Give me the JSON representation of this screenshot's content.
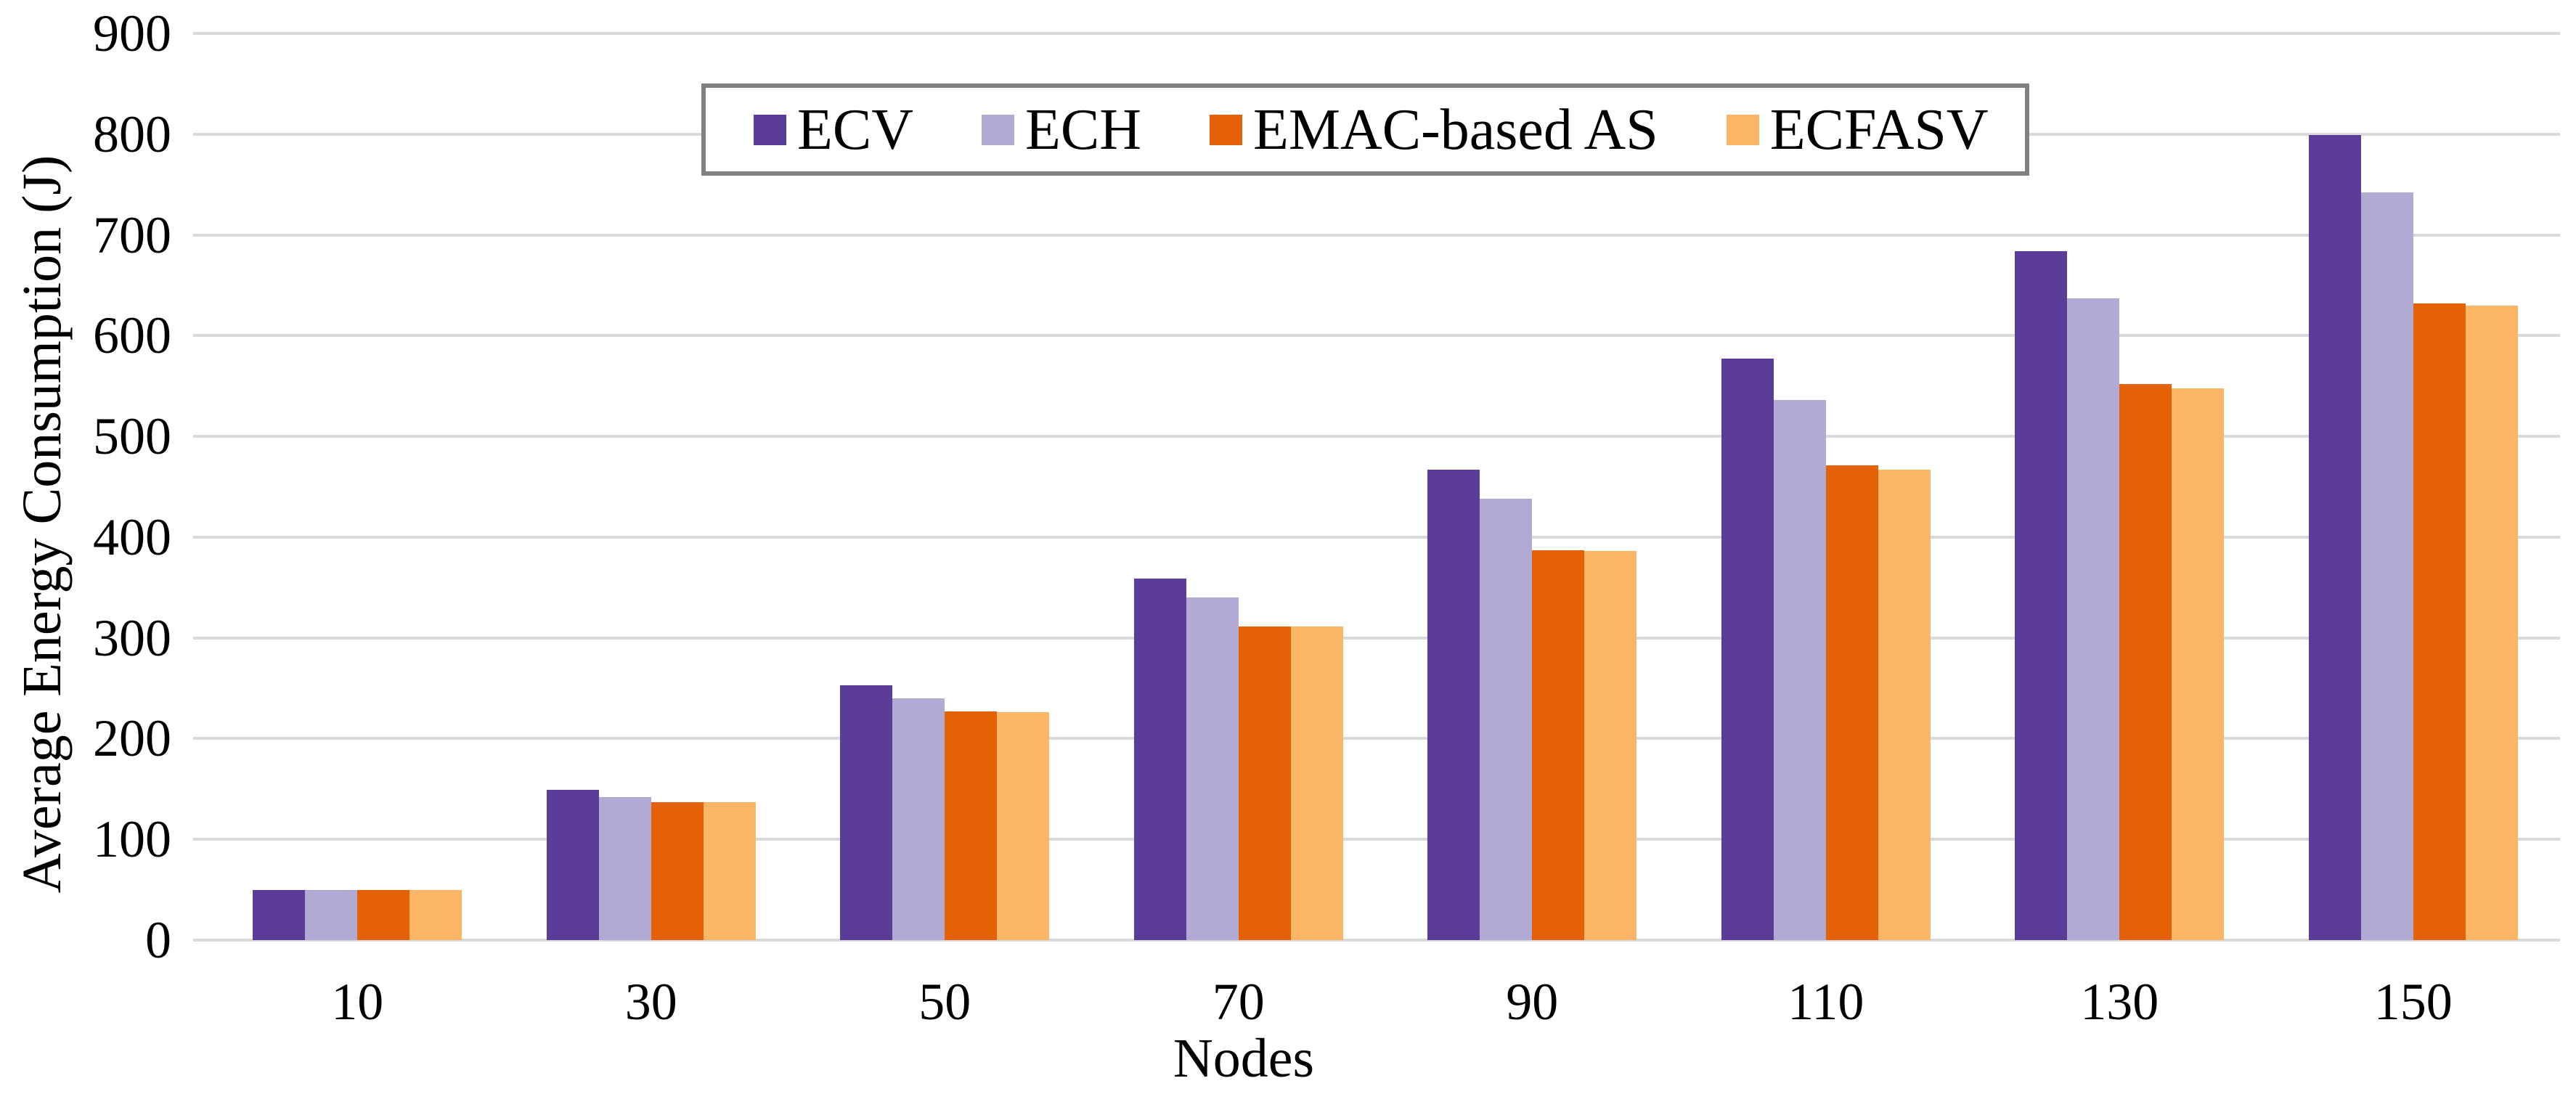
{
  "chart_data": {
    "type": "bar",
    "title": "",
    "xlabel": "Nodes",
    "ylabel": "Average Energy Consumption (J)",
    "categories": [
      "10",
      "30",
      "50",
      "70",
      "90",
      "110",
      "130",
      "150"
    ],
    "series": [
      {
        "name": "ECV",
        "color": "#5B3C98",
        "values": [
          50,
          149,
          253,
          359,
          467,
          577,
          684,
          799
        ]
      },
      {
        "name": "ECH",
        "color": "#B2AAD4",
        "values": [
          50,
          142,
          240,
          340,
          438,
          536,
          637,
          742
        ]
      },
      {
        "name": "EMAC-based AS",
        "color": "#E56105",
        "values": [
          50,
          137,
          227,
          311,
          387,
          471,
          552,
          632
        ]
      },
      {
        "name": "ECFASV",
        "color": "#FBB567",
        "values": [
          50,
          137,
          226,
          311,
          386,
          467,
          548,
          630
        ]
      }
    ],
    "ylim": [
      0,
      900
    ],
    "ytick_step": 100,
    "ytick_labels": [
      "0",
      "100",
      "200",
      "300",
      "400",
      "500",
      "600",
      "700",
      "800",
      "900"
    ],
    "grid": true,
    "legend_position": "top-center"
  },
  "colors": {
    "background": "#FFFFFF",
    "gridline": "#D9D9D9",
    "legend_border": "#808080",
    "text": "#000000"
  }
}
